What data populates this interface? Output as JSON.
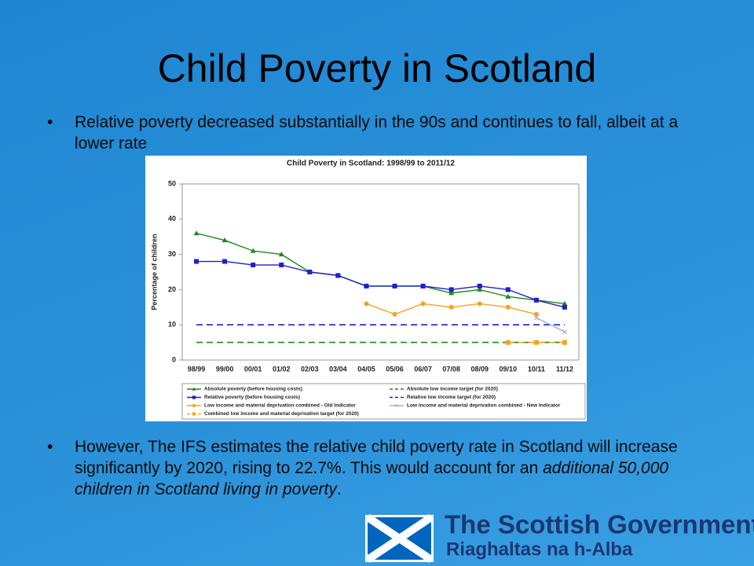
{
  "slide": {
    "title": "Child Poverty in Scotland",
    "bullets": [
      {
        "parts": [
          "Relative poverty decreased substantially in the 90s and continues to fall, albeit at a lower rate"
        ]
      },
      {
        "parts": [
          "However, The IFS estimates the relative child poverty rate in Scotland will increase significantly by 2020, rising to 22.7%. This would account for an ",
          "additional 50,000 children in Scotland living in poverty",
          "."
        ]
      }
    ]
  },
  "logo": {
    "name": "The Scottish Government",
    "gaelic": "Riaghaltas na h-Alba"
  },
  "chart_data": {
    "type": "line",
    "title": "Child Poverty in Scotland: 1998/99 to 2011/12",
    "y_label": "Percentage of children",
    "categories": [
      "98/99",
      "99/00",
      "00/01",
      "01/02",
      "02/03",
      "03/04",
      "04/05",
      "05/06",
      "06/07",
      "07/08",
      "08/09",
      "09/10",
      "10/11",
      "11/12"
    ],
    "ylim": [
      0,
      50
    ],
    "yticks": [
      0,
      10,
      20,
      30,
      40,
      50
    ],
    "grid": false,
    "series": [
      {
        "name": "Absolute poverty (before housing costs)",
        "color": "#1a8a1a",
        "marker": "triangle",
        "dashed": false,
        "values": [
          36,
          34,
          31,
          30,
          25,
          24,
          21,
          21,
          21,
          19,
          20,
          18,
          17,
          16
        ]
      },
      {
        "name": "Absolute low income target  (for 2020)",
        "color": "#1a8a1a",
        "marker": "none",
        "dashed": true,
        "values": [
          5,
          5,
          5,
          5,
          5,
          5,
          5,
          5,
          5,
          5,
          5,
          5,
          5,
          5
        ]
      },
      {
        "name": "Relative poverty (before housing costs)",
        "color": "#1f1fcc",
        "marker": "square",
        "dashed": false,
        "values": [
          28,
          28,
          27,
          27,
          25,
          24,
          21,
          21,
          21,
          20,
          21,
          20,
          17,
          15
        ]
      },
      {
        "name": "Relative low income target  (for 2020)",
        "color": "#1f1fcc",
        "marker": "none",
        "dashed": true,
        "values": [
          10,
          10,
          10,
          10,
          10,
          10,
          10,
          10,
          10,
          10,
          10,
          10,
          10,
          10
        ]
      },
      {
        "name": "Low income and material deprivation combined - Old Indicator",
        "color": "#f5a21e",
        "marker": "circle",
        "dashed": false,
        "values": [
          null,
          null,
          null,
          null,
          null,
          null,
          16,
          13,
          16,
          15,
          16,
          15,
          13,
          null
        ]
      },
      {
        "name": "Low income and material deprivation combined - New Indicator",
        "color": "#9fb0d0",
        "marker": "cross",
        "dashed": false,
        "values": [
          null,
          null,
          null,
          null,
          null,
          null,
          null,
          null,
          null,
          null,
          null,
          null,
          12,
          8
        ]
      },
      {
        "name": "Combined low income and material deprivation target (for 2020)",
        "color": "#f5a21e",
        "marker": "square",
        "dashed": true,
        "values": [
          null,
          null,
          null,
          null,
          null,
          null,
          null,
          null,
          null,
          null,
          null,
          5,
          5,
          5
        ]
      }
    ]
  }
}
